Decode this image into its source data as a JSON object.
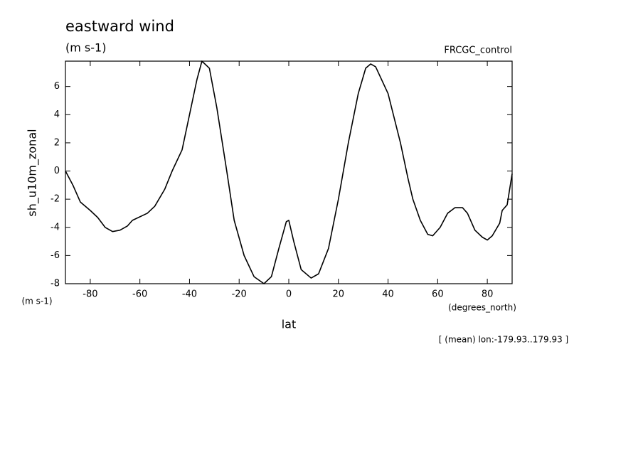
{
  "chart_data": {
    "type": "line",
    "title": "eastward wind",
    "subtitle": "(m s-1)",
    "annotation_right": "FRCGC_control",
    "y_label": "sh_u10m_zonal",
    "y_units": "(m s-1)",
    "x_units": "(degrees_north)",
    "x_label": "lat",
    "note": "[ (mean) lon:-179.93..179.93 ]",
    "x": [
      -90,
      -87,
      -84,
      -80,
      -77,
      -74,
      -71,
      -68,
      -65,
      -63,
      -57,
      -54,
      -50,
      -47,
      -43,
      -40,
      -37,
      -35,
      -32,
      -29,
      -25,
      -22,
      -18,
      -14,
      -10,
      -7,
      -4,
      -1,
      0,
      2,
      5,
      9,
      12,
      16,
      20,
      24,
      28,
      31,
      33,
      35,
      40,
      45,
      48,
      50,
      53,
      56,
      58,
      61,
      64,
      67,
      70,
      72,
      75,
      78,
      80,
      82,
      85,
      86,
      88,
      90
    ],
    "series": [
      {
        "color": "#000000",
        "values": [
          0,
          -1,
          -2.2,
          -2.8,
          -3.3,
          -4.0,
          -4.3,
          -4.2,
          -3.9,
          -3.5,
          -3.0,
          -2.5,
          -1.3,
          0,
          1.5,
          4,
          6.5,
          7.8,
          7.3,
          4.5,
          0,
          -3.5,
          -6,
          -7.5,
          -8,
          -7.5,
          -5.5,
          -3.6,
          -3.5,
          -5,
          -7,
          -7.6,
          -7.3,
          -5.5,
          -2,
          2,
          5.5,
          7.3,
          7.6,
          7.4,
          5.5,
          2,
          -0.5,
          -2,
          -3.5,
          -4.5,
          -4.6,
          -4.0,
          -3.0,
          -2.6,
          -2.6,
          -3.0,
          -4.2,
          -4.7,
          -4.9,
          -4.6,
          -3.7,
          -2.8,
          -2.4,
          -0.2
        ]
      }
    ],
    "xlim": [
      -90,
      90
    ],
    "xticks": [
      -80,
      -60,
      -40,
      -20,
      0,
      20,
      40,
      60,
      80
    ],
    "ylim": [
      -8,
      7.8
    ],
    "yticks": [
      -8,
      -6,
      -4,
      -2,
      0,
      2,
      4,
      6
    ]
  }
}
